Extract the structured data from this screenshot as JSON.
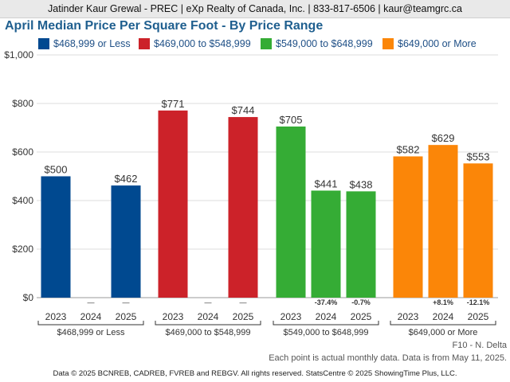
{
  "header": {
    "text": "Jatinder Kaur Grewal - PREC | eXp Realty of Canada, Inc. | 833-817-6506 | kaur@teamgrc.ca"
  },
  "chart_data": {
    "type": "bar",
    "title": "April Median Price Per Square Foot - By Price Range",
    "xlabel": "",
    "ylabel": "",
    "ylim": [
      0,
      1000
    ],
    "yticks": [
      "$0",
      "$200",
      "$400",
      "$600",
      "$800",
      "$1,000"
    ],
    "grid": true,
    "legend_position": "top",
    "groups": [
      {
        "name": "$468,999 or Less",
        "color": "#004990",
        "years": [
          "2023",
          "2024",
          "2025"
        ],
        "values": [
          500,
          null,
          462
        ],
        "labels": [
          "$500",
          "",
          "$462"
        ],
        "changes": [
          "",
          "—",
          "—"
        ]
      },
      {
        "name": "$469,000 to $548,999",
        "color": "#cc2229",
        "years": [
          "2023",
          "2024",
          "2025"
        ],
        "values": [
          771,
          null,
          744
        ],
        "labels": [
          "$771",
          "",
          "$744"
        ],
        "changes": [
          "",
          "—",
          "—"
        ]
      },
      {
        "name": "$549,000 to $648,999",
        "color": "#35ac35",
        "years": [
          "2023",
          "2024",
          "2025"
        ],
        "values": [
          705,
          441,
          438
        ],
        "labels": [
          "$705",
          "$441",
          "$438"
        ],
        "changes": [
          "",
          "-37.4%",
          "-0.7%"
        ]
      },
      {
        "name": "$649,000 or More",
        "color": "#fb8608",
        "years": [
          "2023",
          "2024",
          "2025"
        ],
        "values": [
          582,
          629,
          553
        ],
        "labels": [
          "$582",
          "$629",
          "$553"
        ],
        "changes": [
          "",
          "+8.1%",
          "-12.1%"
        ]
      }
    ]
  },
  "footer": {
    "area": "F10 - N. Delta",
    "note": "Each point is actual monthly data. Data is from May 11, 2025.",
    "attribution": "Data © 2025 BCNREB, CADREB, FVREB and REBGV. All rights reserved. StatsCentre © 2025 ShowingTime Plus, LLC."
  }
}
